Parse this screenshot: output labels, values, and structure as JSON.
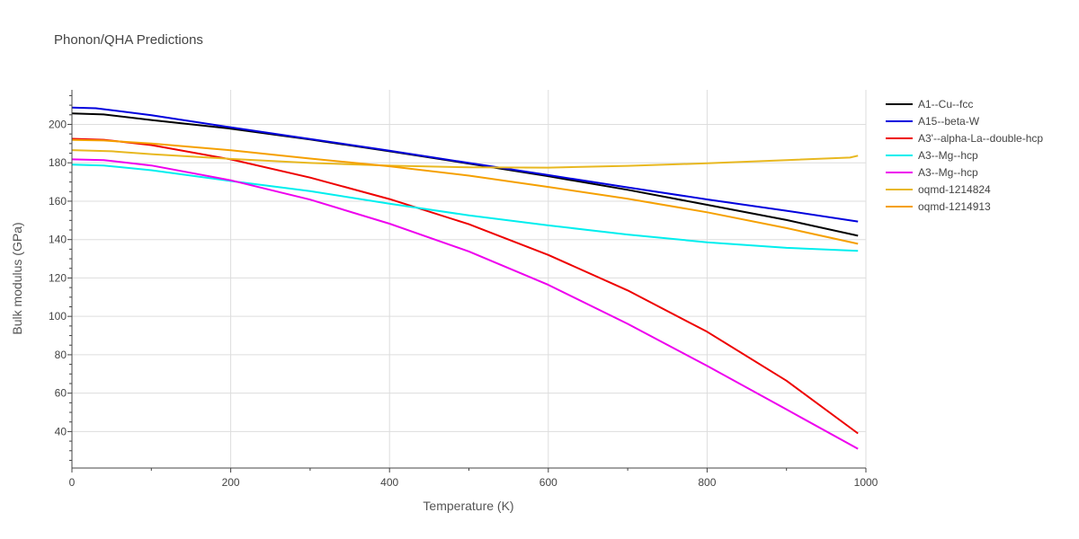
{
  "chart_data": {
    "type": "line",
    "title": "Phonon/QHA Predictions",
    "xlabel": "Temperature (K)",
    "ylabel": "Bulk modulus (GPa)",
    "xlim": [
      0,
      1000
    ],
    "ylim": [
      21,
      218
    ],
    "x_ticks": [
      0,
      200,
      400,
      600,
      800,
      1000
    ],
    "y_ticks": [
      40,
      60,
      80,
      100,
      120,
      140,
      160,
      180,
      200
    ],
    "grid": true,
    "legend_position": "right",
    "series": [
      {
        "name": "A1--Cu--fcc",
        "color": "#000000",
        "x": [
          0,
          40,
          100,
          200,
          300,
          400,
          500,
          600,
          700,
          800,
          900,
          990
        ],
        "y": [
          205.7,
          205.2,
          202.3,
          197.8,
          192.1,
          186.0,
          179.6,
          173.0,
          165.9,
          158.1,
          150.2,
          142.0
        ]
      },
      {
        "name": "A15--beta-W",
        "color": "#0000dd",
        "x": [
          0,
          30,
          100,
          200,
          300,
          400,
          500,
          600,
          700,
          800,
          900,
          990
        ],
        "y": [
          208.8,
          208.4,
          204.8,
          198.5,
          192.4,
          186.3,
          179.9,
          173.6,
          167.2,
          160.9,
          155.0,
          149.4
        ]
      },
      {
        "name": "A3'--alpha-La--double-hcp",
        "color": "#ee0000",
        "x": [
          0,
          40,
          100,
          200,
          300,
          400,
          500,
          600,
          700,
          800,
          900,
          990
        ],
        "y": [
          192.5,
          192.0,
          189.2,
          181.8,
          172.3,
          161.1,
          148.0,
          132.0,
          113.5,
          92.0,
          66.5,
          39.0
        ]
      },
      {
        "name": "A3--Mg--hcp",
        "color": "#00eeee",
        "x": [
          0,
          40,
          100,
          200,
          300,
          400,
          500,
          600,
          700,
          800,
          900,
          990
        ],
        "y": [
          179.0,
          178.6,
          176.1,
          170.5,
          165.2,
          158.7,
          152.6,
          147.4,
          142.6,
          138.6,
          135.7,
          134.1
        ]
      },
      {
        "name": "A3--Mg--hcp",
        "color": "#ee00ee",
        "x": [
          0,
          40,
          100,
          200,
          300,
          400,
          500,
          600,
          700,
          800,
          900,
          990
        ],
        "y": [
          181.8,
          181.4,
          178.6,
          170.9,
          160.8,
          148.3,
          133.8,
          116.4,
          96.1,
          74.2,
          51.5,
          31.0
        ]
      },
      {
        "name": "oqmd-1214824",
        "color": "#e8b820",
        "x": [
          0,
          50,
          100,
          200,
          300,
          400,
          500,
          600,
          700,
          800,
          900,
          980,
          990
        ],
        "y": [
          186.6,
          186.0,
          184.5,
          182.0,
          179.9,
          178.5,
          177.6,
          177.5,
          178.4,
          179.7,
          181.4,
          182.7,
          183.7
        ]
      },
      {
        "name": "oqmd-1214913",
        "color": "#f5a000",
        "x": [
          0,
          40,
          100,
          200,
          300,
          400,
          500,
          600,
          700,
          800,
          900,
          990
        ],
        "y": [
          191.9,
          191.6,
          190.0,
          186.5,
          182.2,
          178.2,
          173.3,
          167.4,
          161.3,
          154.2,
          146.0,
          137.8
        ]
      }
    ]
  }
}
